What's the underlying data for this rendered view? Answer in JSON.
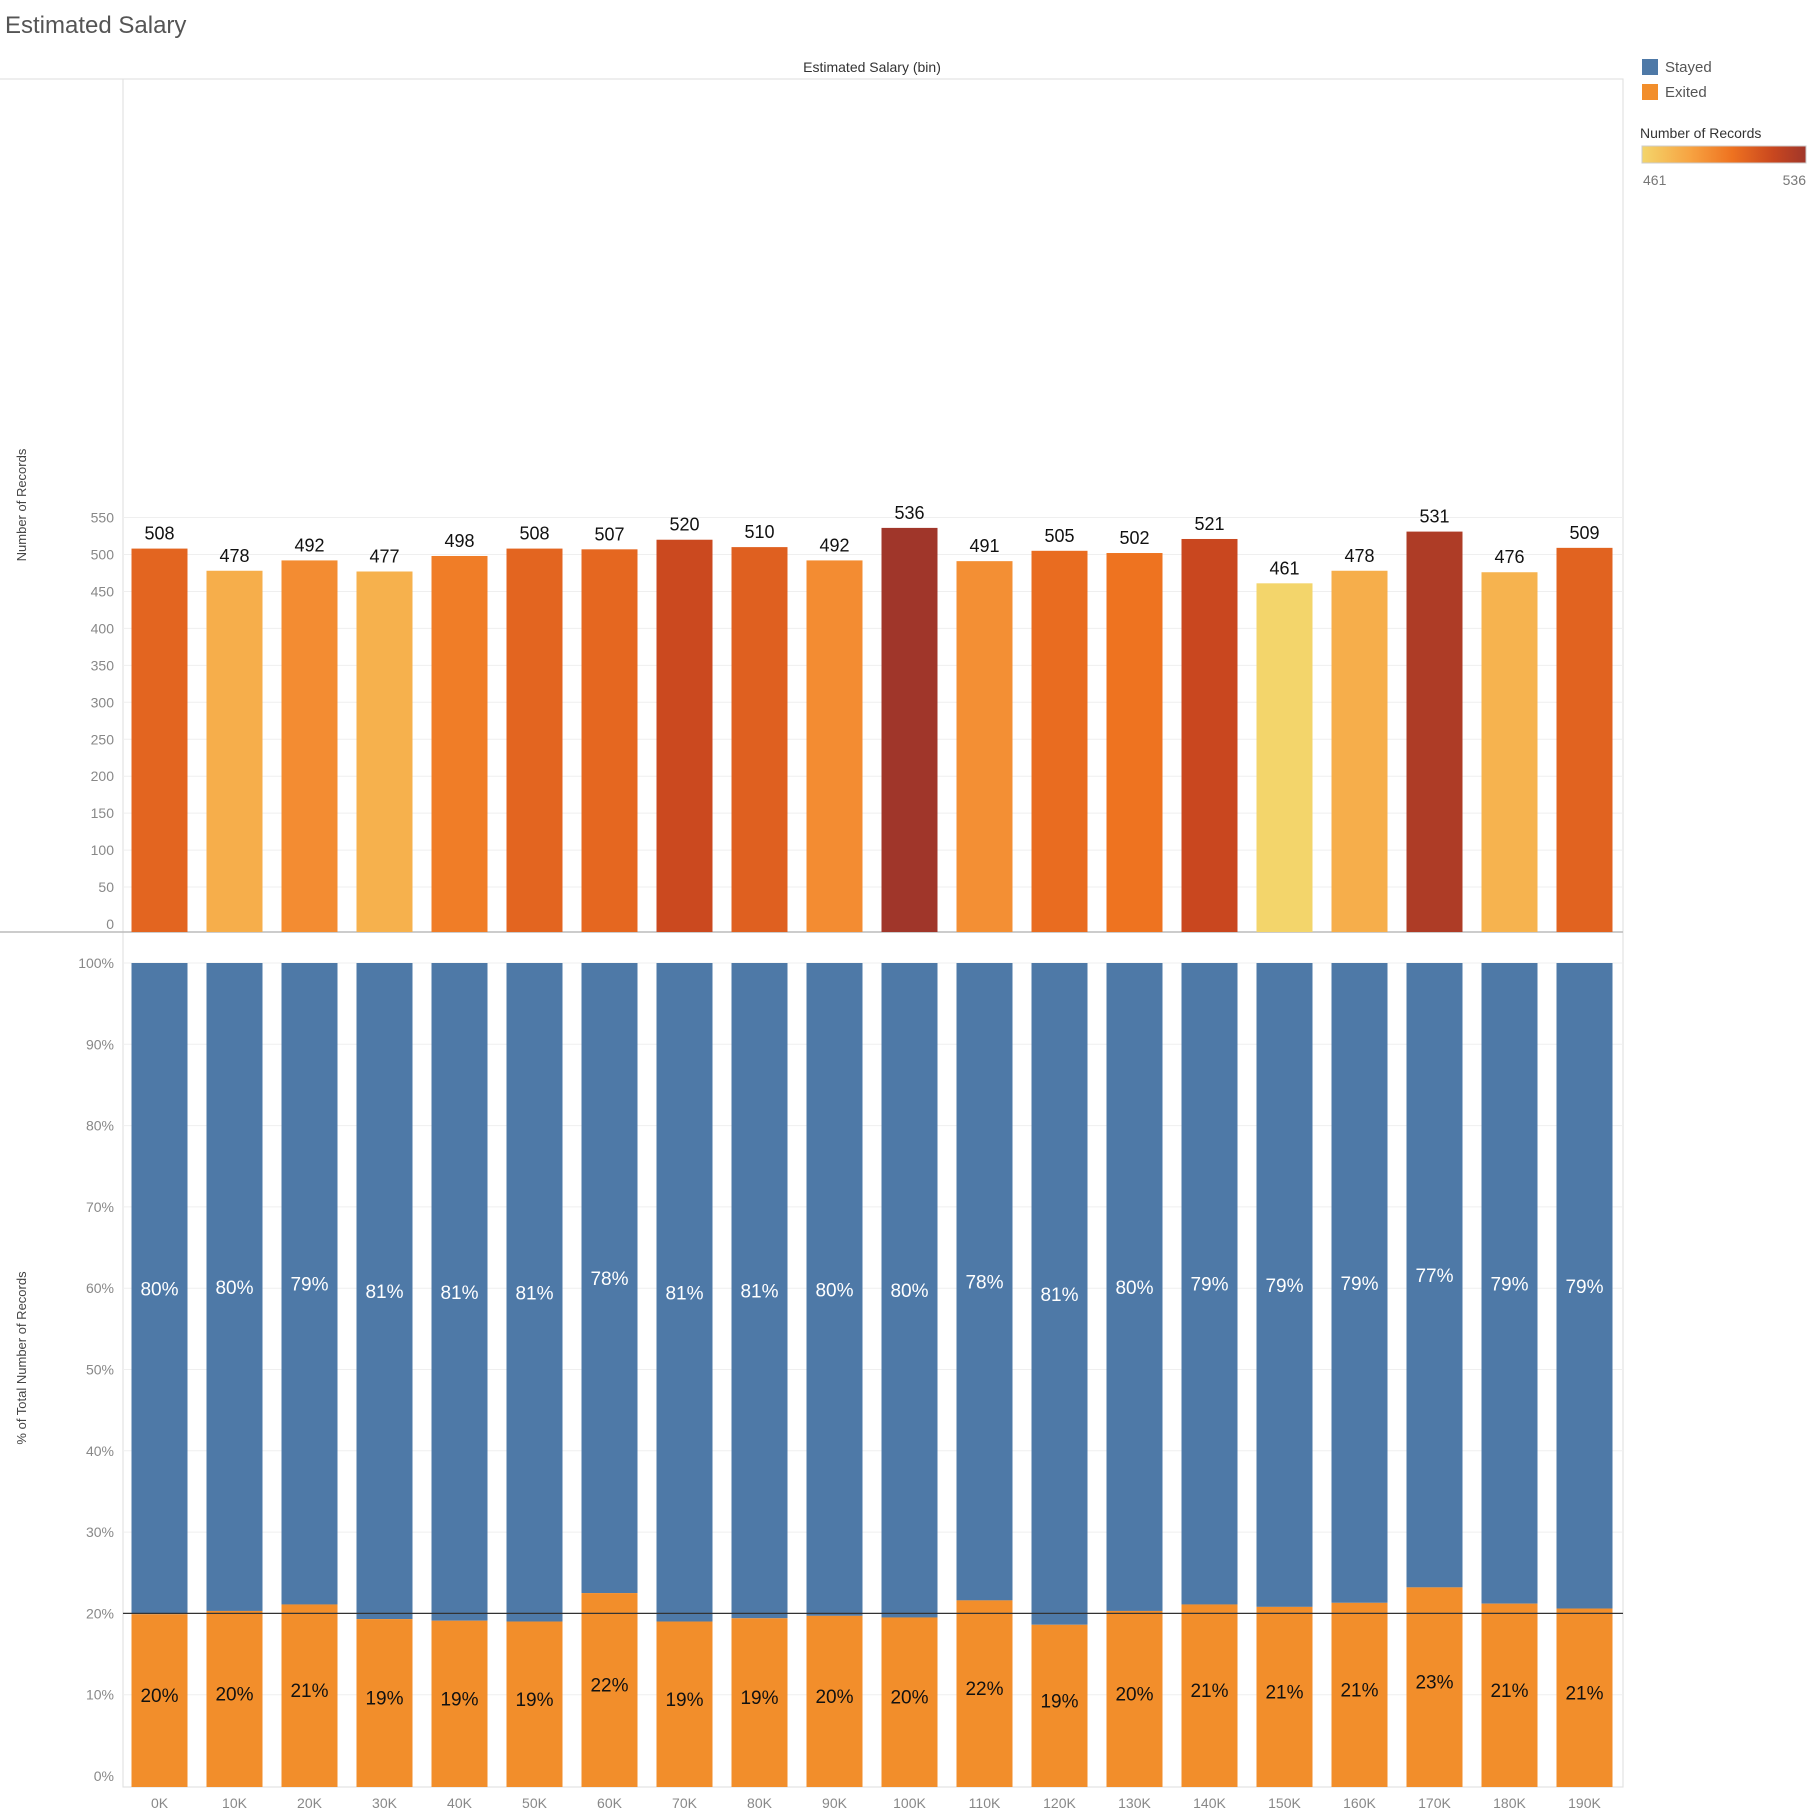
{
  "title": "Estimated Salary",
  "chart_data": [
    {
      "type": "bar",
      "xlabel": "Estimated Salary (bin)",
      "ylabel": "Number of Records",
      "categories": [
        "0K",
        "10K",
        "20K",
        "30K",
        "40K",
        "50K",
        "60K",
        "70K",
        "80K",
        "90K",
        "100K",
        "110K",
        "120K",
        "130K",
        "140K",
        "150K",
        "160K",
        "170K",
        "180K",
        "190K"
      ],
      "values": [
        508,
        478,
        492,
        477,
        498,
        508,
        507,
        520,
        510,
        492,
        536,
        491,
        505,
        502,
        521,
        461,
        478,
        531,
        476,
        509
      ],
      "yticks": [
        0,
        50,
        100,
        150,
        200,
        250,
        300,
        350,
        400,
        450,
        500,
        550
      ],
      "ylim": [
        0,
        580
      ],
      "grid": true,
      "color_scale": {
        "title": "Number of Records",
        "min": 461,
        "max": 536,
        "colors": [
          "#f3d56b",
          "#f7a241",
          "#ee7220",
          "#c9471f",
          "#a0362a"
        ]
      }
    },
    {
      "type": "bar",
      "stacked": true,
      "xlabel": "Estimated Salary (bin)",
      "ylabel": "% of Total Number of Records",
      "categories": [
        "0K",
        "10K",
        "20K",
        "30K",
        "40K",
        "50K",
        "60K",
        "70K",
        "80K",
        "90K",
        "100K",
        "110K",
        "120K",
        "130K",
        "140K",
        "150K",
        "160K",
        "170K",
        "180K",
        "190K"
      ],
      "series": [
        {
          "name": "Stayed",
          "color": "#4e79a7",
          "values": [
            80,
            80,
            79,
            81,
            81,
            81,
            78,
            81,
            81,
            80,
            80,
            78,
            81,
            80,
            79,
            79,
            79,
            77,
            79,
            79
          ],
          "labels": [
            "80%",
            "80%",
            "79%",
            "81%",
            "81%",
            "81%",
            "78%",
            "81%",
            "81%",
            "80%",
            "80%",
            "78%",
            "81%",
            "80%",
            "79%",
            "79%",
            "79%",
            "77%",
            "79%",
            "79%"
          ]
        },
        {
          "name": "Exited",
          "color": "#f28e2b",
          "values": [
            20,
            20,
            21,
            19,
            19,
            19,
            22,
            19,
            19,
            20,
            20,
            22,
            19,
            20,
            21,
            21,
            21,
            23,
            21,
            21
          ],
          "labels": [
            "20%",
            "20%",
            "21%",
            "19%",
            "19%",
            "19%",
            "22%",
            "19%",
            "19%",
            "20%",
            "20%",
            "22%",
            "19%",
            "20%",
            "21%",
            "21%",
            "21%",
            "23%",
            "21%",
            "21%"
          ]
        }
      ],
      "exited_share_precise": [
        19.9,
        20.3,
        21.1,
        19.3,
        19.1,
        19.0,
        22.5,
        19.0,
        19.4,
        19.7,
        19.5,
        21.6,
        18.6,
        20.3,
        21.1,
        20.8,
        21.3,
        23.2,
        21.2,
        20.6
      ],
      "yticks": [
        "0%",
        "10%",
        "20%",
        "30%",
        "40%",
        "50%",
        "60%",
        "70%",
        "80%",
        "90%",
        "100%"
      ],
      "ylim": [
        0,
        100
      ],
      "reference_line": 20,
      "grid": true
    }
  ],
  "legend": {
    "items": [
      {
        "label": "Stayed",
        "color": "#4e79a7"
      },
      {
        "label": "Exited",
        "color": "#f28e2b"
      }
    ],
    "scale_title": "Number of Records",
    "scale_min_label": "461",
    "scale_max_label": "536"
  }
}
